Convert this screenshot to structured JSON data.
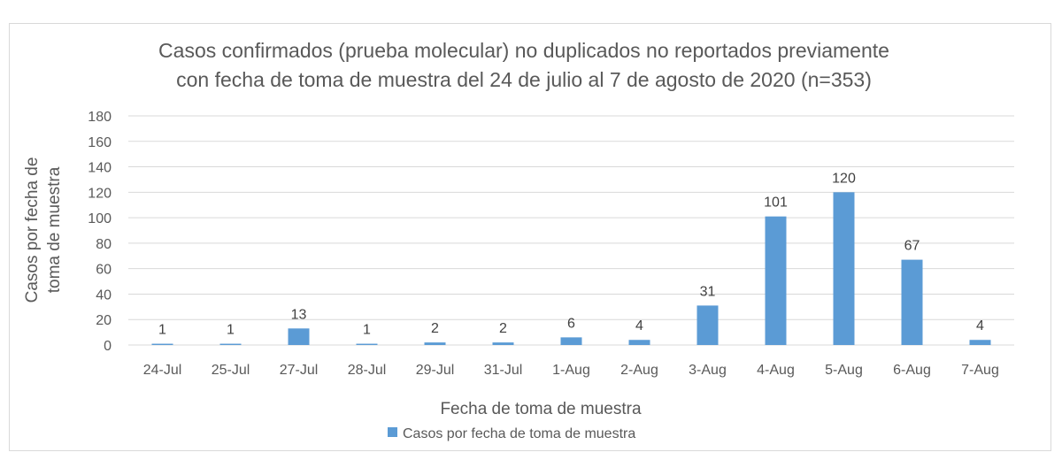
{
  "chart_data": {
    "type": "bar",
    "title": [
      "Casos confirmados (prueba molecular) no duplicados no reportados previamente",
      "con fecha de toma de muestra del 24 de julio al 7 de agosto de 2020 (n=353)"
    ],
    "xlabel": "Fecha de toma de muestra",
    "ylabel": [
      "Casos por fecha de",
      "toma de muestra"
    ],
    "categories": [
      "24-Jul",
      "25-Jul",
      "27-Jul",
      "28-Jul",
      "29-Jul",
      "31-Jul",
      "1-Aug",
      "2-Aug",
      "3-Aug",
      "4-Aug",
      "5-Aug",
      "6-Aug",
      "7-Aug"
    ],
    "series": [
      {
        "name": "Casos por fecha de toma de muestra",
        "values": [
          1,
          1,
          13,
          1,
          2,
          2,
          6,
          4,
          31,
          101,
          120,
          67,
          4
        ],
        "color": "#5b9bd5"
      }
    ],
    "ylim": [
      0,
      180
    ],
    "yticks": [
      0,
      20,
      40,
      60,
      80,
      100,
      120,
      140,
      160,
      180
    ],
    "grid": true,
    "legend": "bottom",
    "data_labels": true
  }
}
